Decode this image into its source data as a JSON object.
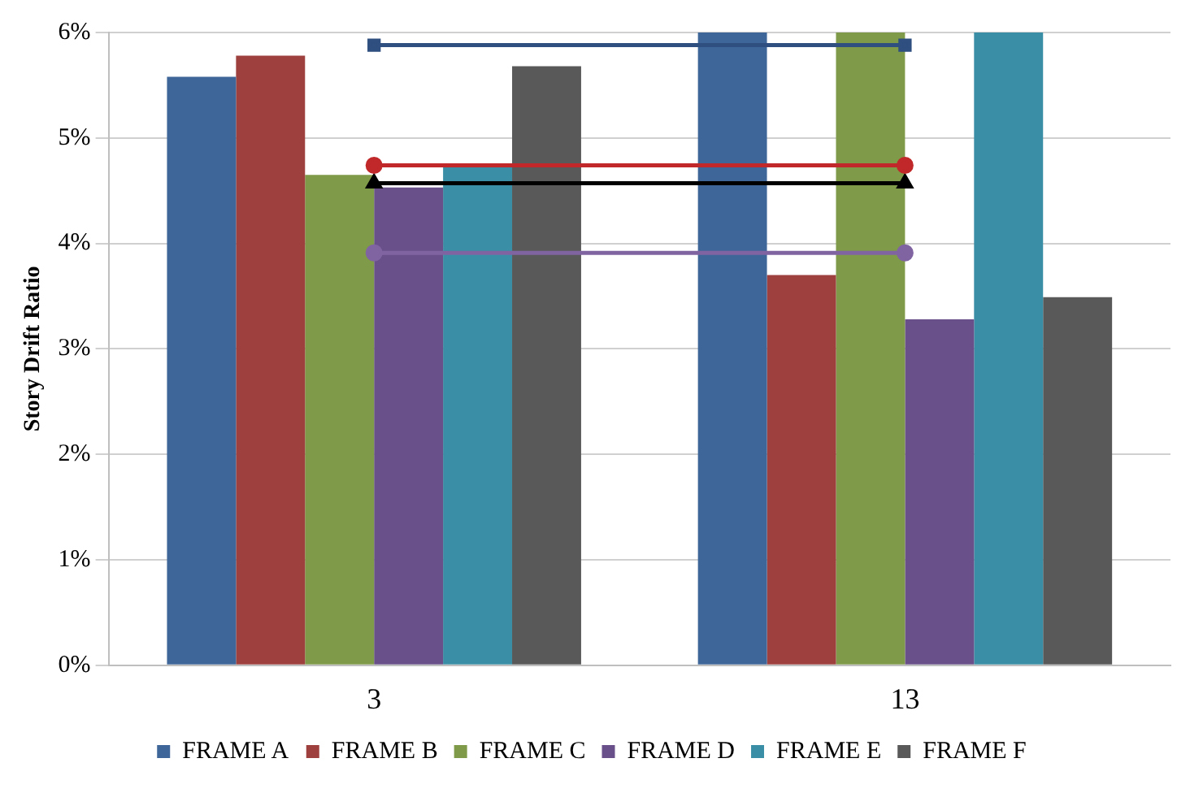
{
  "chart_data": {
    "type": "bar",
    "ylabel": "Story Drift Ratio",
    "categories": [
      "3",
      "13"
    ],
    "series": [
      {
        "name": "FRAME A",
        "color": "#3f6698",
        "values": [
          5.58,
          6
        ]
      },
      {
        "name": "FRAME B",
        "color": "#9e413e",
        "values": [
          5.78,
          3.7
        ]
      },
      {
        "name": "FRAME C",
        "color": "#7f9a48",
        "values": [
          4.65,
          6
        ]
      },
      {
        "name": "FRAME D",
        "color": "#69508a",
        "values": [
          4.53,
          3.28
        ]
      },
      {
        "name": "FRAME E",
        "color": "#3a8ea5",
        "values": [
          4.73,
          6
        ]
      },
      {
        "name": "FRAME F",
        "color": "#595959",
        "values": [
          5.68,
          3.49
        ]
      },
      {
        "type": "line",
        "color": "#2e4f7f",
        "marker": "square",
        "values": [
          5.88,
          5.88
        ]
      },
      {
        "type": "line",
        "color": "#c0282a",
        "marker": "circle",
        "values": [
          4.74,
          4.74
        ]
      },
      {
        "type": "line",
        "color": "#000000",
        "marker": "triangle",
        "values": [
          4.57,
          4.57
        ]
      },
      {
        "type": "line",
        "color": "#8064a2",
        "marker": "circle",
        "values": [
          3.91,
          3.91
        ]
      }
    ],
    "ylim": [
      0,
      6
    ],
    "yticks": [
      {
        "value": 0,
        "label": "0%"
      },
      {
        "value": 1,
        "label": "1%"
      },
      {
        "value": 2,
        "label": "2%"
      },
      {
        "value": 3,
        "label": "3%"
      },
      {
        "value": 4,
        "label": "4%"
      },
      {
        "value": 5,
        "label": "5%"
      },
      {
        "value": 6,
        "label": "6%"
      }
    ],
    "grid": "y",
    "legend": "bottom"
  }
}
